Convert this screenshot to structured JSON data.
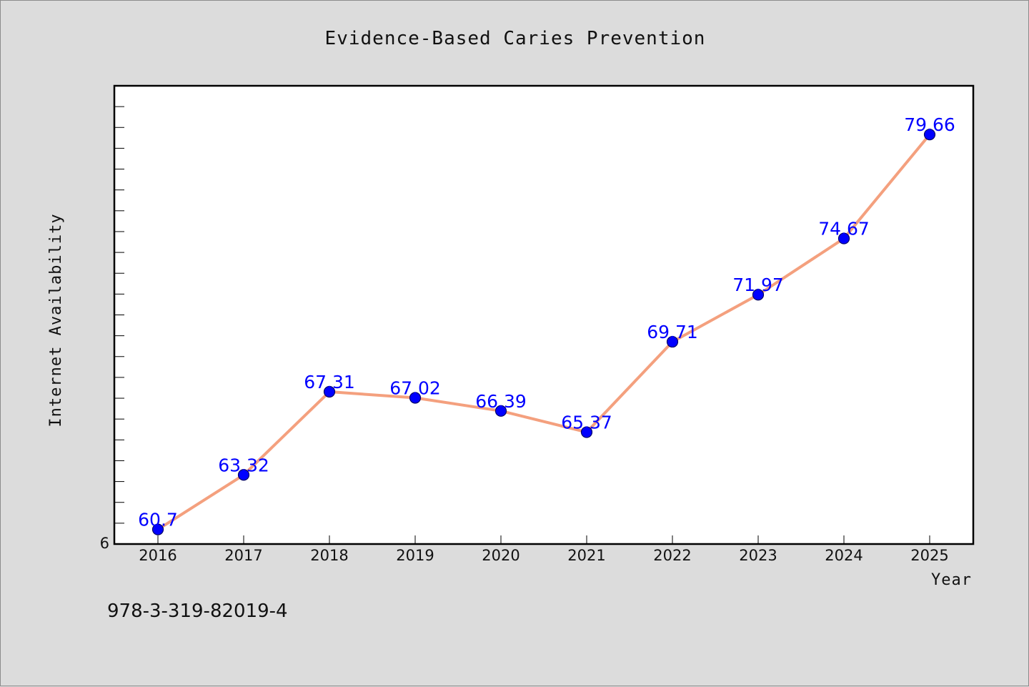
{
  "chart_data": {
    "type": "line",
    "title": "Evidence-Based Caries Prevention",
    "xlabel": "Year",
    "ylabel": "Internet Availability",
    "x": [
      "2016",
      "2017",
      "2018",
      "2019",
      "2020",
      "2021",
      "2022",
      "2023",
      "2024",
      "2025"
    ],
    "series": [
      {
        "values": [
          60.7,
          63.32,
          67.31,
          67.02,
          66.39,
          65.37,
          69.71,
          71.97,
          74.67,
          79.66
        ],
        "labels": [
          "60.7",
          "63.32",
          "67.31",
          "67.02",
          "66.39",
          "65.37",
          "69.71",
          "71.97",
          "74.67",
          "79.66"
        ]
      }
    ],
    "ylim": [
      60,
      82
    ],
    "y_tick_labels": [
      "6"
    ],
    "y_minor_ticks": 21,
    "grid": false,
    "legend": "none",
    "colors": {
      "line": "#f4a07e",
      "marker": "#0000ff",
      "marker_edge": "#000066",
      "label": "#0000ff",
      "plot_bg": "#ffffff",
      "page_bg": "#dcdcdc"
    }
  },
  "footer": {
    "isbn": "978-3-319-82019-4"
  }
}
